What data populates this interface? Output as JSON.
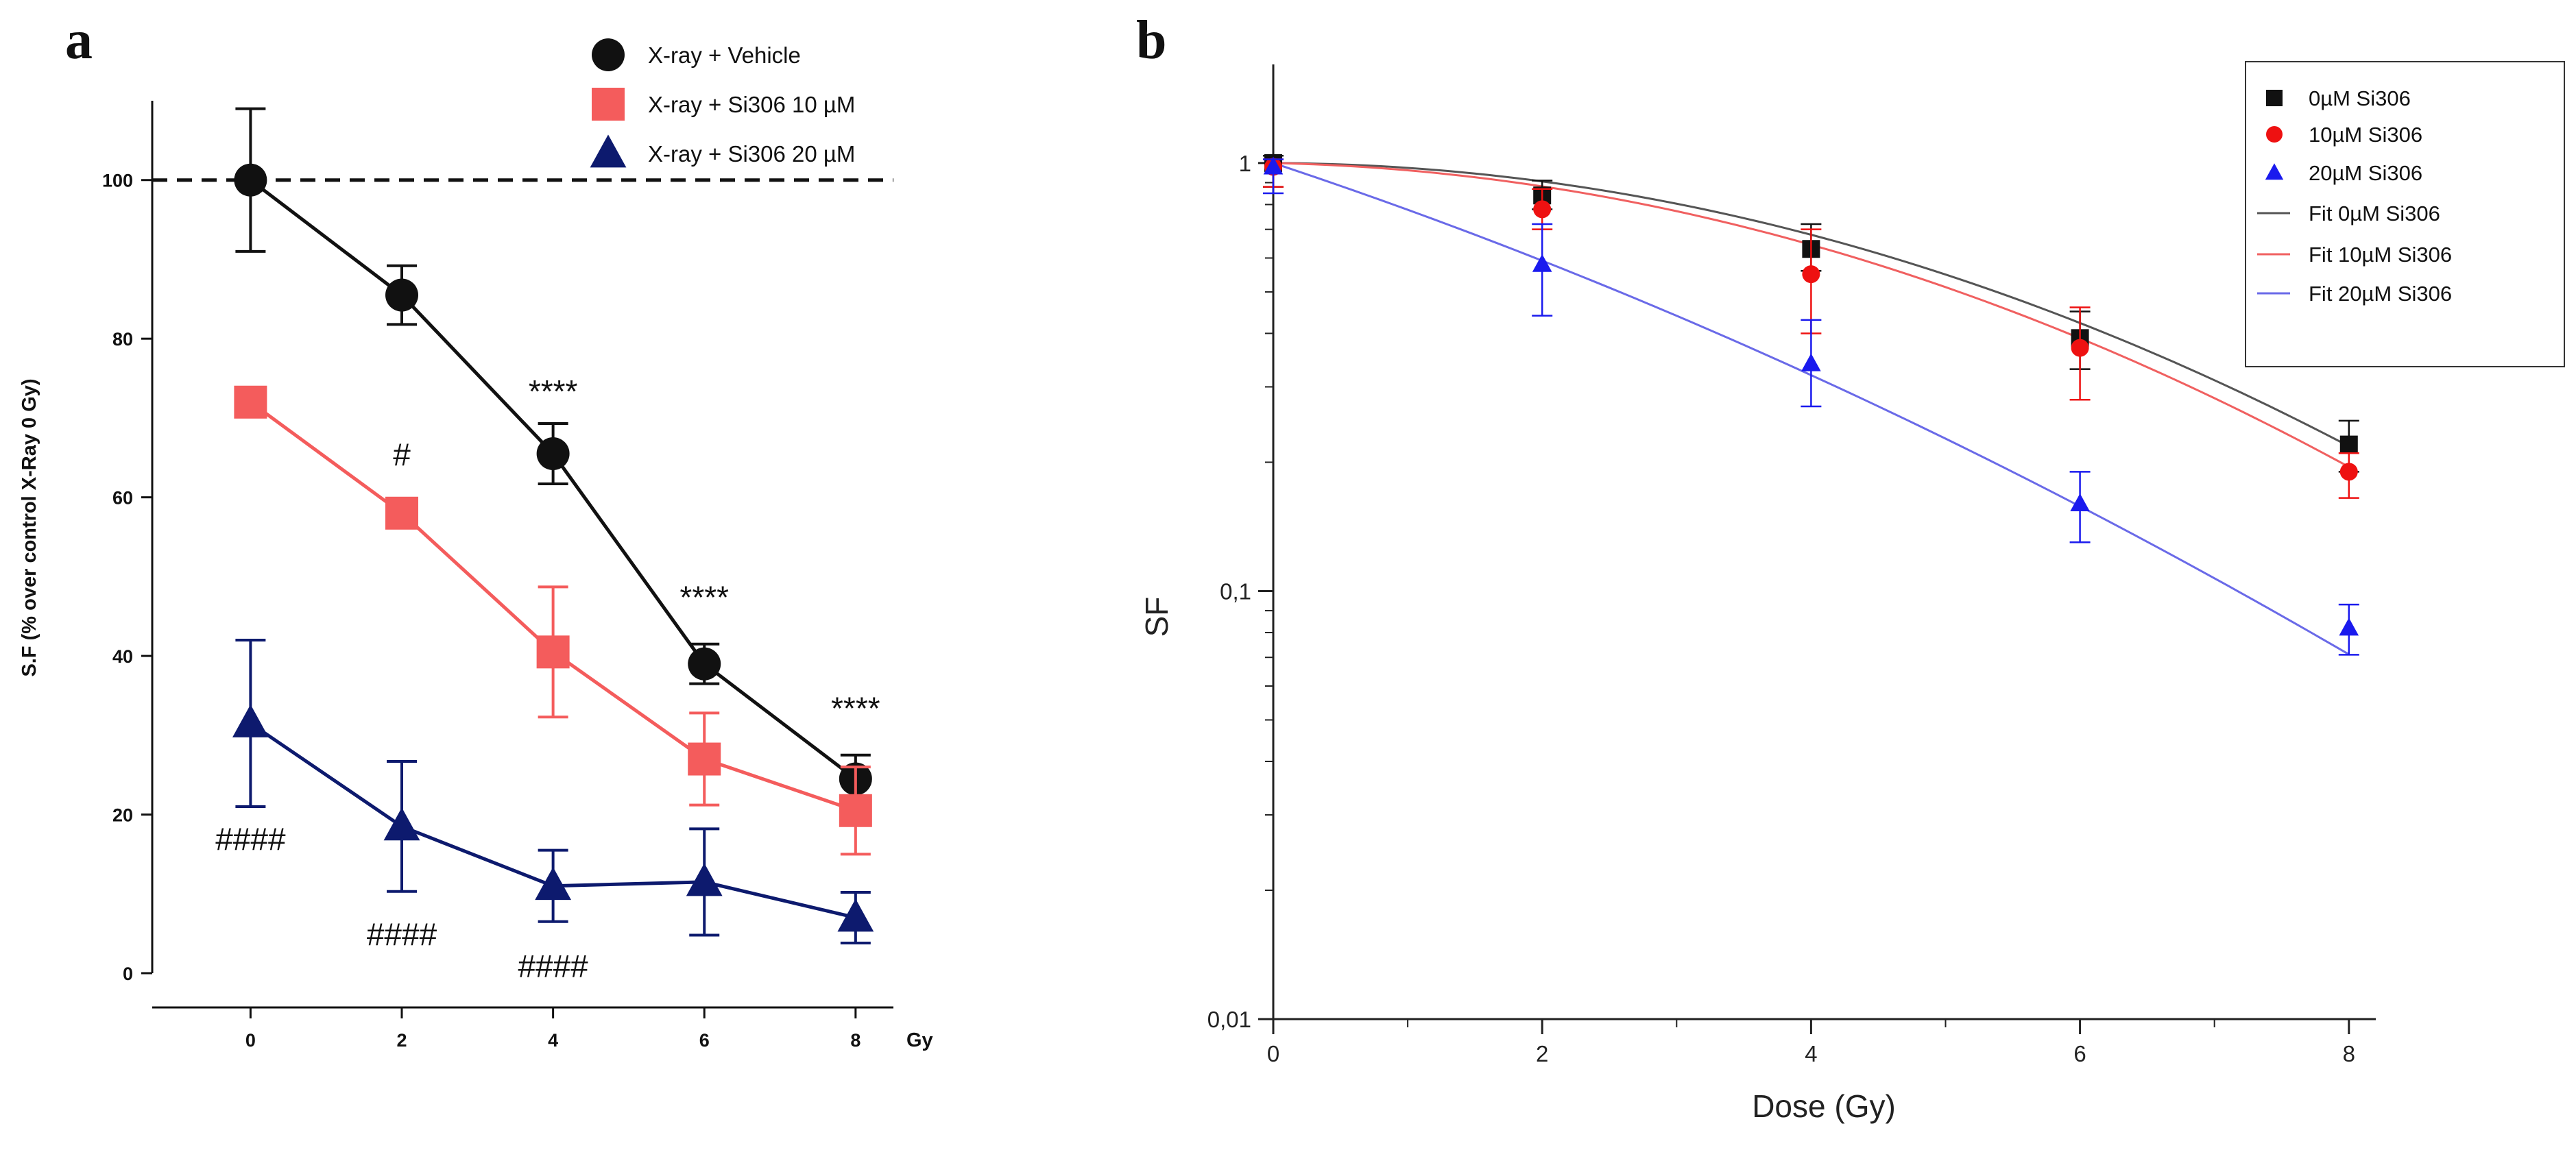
{
  "chart_data": [
    {
      "panel": "a",
      "type": "line",
      "title": "",
      "xlabel": "Gy",
      "ylabel": "S.F (% over control X-Ray 0 Gy)",
      "x": [
        0,
        2,
        4,
        6,
        8
      ],
      "x_tick_labels": [
        "0",
        "2",
        "4",
        "6",
        "8"
      ],
      "y_ticks": [
        0,
        20,
        40,
        60,
        80,
        100
      ],
      "xlim": [
        -1.3,
        8.5
      ],
      "ylim": [
        0,
        110
      ],
      "reference_line": 100,
      "series": [
        {
          "name": "X-ray  + Vehicle",
          "color": "#111111",
          "marker": "circle",
          "values": [
            100,
            85.5,
            65.5,
            39,
            24.5
          ],
          "errors": [
            9,
            3.7,
            3.8,
            2.5,
            3
          ]
        },
        {
          "name": "X-ray  + Si306 10 µM",
          "color": "#f45c5c",
          "marker": "square",
          "values": [
            72,
            58,
            40.5,
            27,
            20.5
          ],
          "errors": [
            1.5,
            1.2,
            8.2,
            5.8,
            5.5
          ]
        },
        {
          "name": "X-ray  + Si306 20 µM",
          "color": "#0d1a6e",
          "marker": "triangle",
          "values": [
            31.5,
            18.5,
            11,
            11.5,
            7
          ],
          "errors": [
            10.5,
            8.2,
            4.5,
            6.7,
            3.2
          ]
        }
      ],
      "annotations": [
        {
          "text": "****",
          "x": 4,
          "y": 72
        },
        {
          "text": "****",
          "x": 6,
          "y": 46
        },
        {
          "text": "****",
          "x": 8,
          "y": 32
        },
        {
          "text": "#",
          "x": 2,
          "y": 64
        },
        {
          "text": "####",
          "x": 0,
          "y": 15.5
        },
        {
          "text": "####",
          "x": 2,
          "y": 3.5
        },
        {
          "text": "####",
          "x": 4,
          "y": -0.5
        }
      ]
    },
    {
      "panel": "b",
      "type": "line",
      "title": "",
      "xlabel": "Dose (Gy)",
      "ylabel": "SF",
      "y_scale": "log",
      "x": [
        0,
        2,
        4,
        6,
        8
      ],
      "x_tick_labels": [
        "0",
        "2",
        "4",
        "6",
        "8"
      ],
      "xlim": [
        0,
        8.2
      ],
      "ylim": [
        0.01,
        1.7
      ],
      "y_ticks": [
        1,
        0.1,
        0.01
      ],
      "y_tick_labels": [
        "1",
        "0,1",
        "0,01"
      ],
      "series": [
        {
          "name": "0µM Si306",
          "color": "#111111",
          "marker": "square",
          "values": [
            1.0,
            0.84,
            0.63,
            0.39,
            0.22
          ],
          "err_low": [
            0.12,
            0.06,
            0.07,
            0.06,
            0.03
          ],
          "err_high": [
            0.04,
            0.07,
            0.09,
            0.06,
            0.03
          ]
        },
        {
          "name": "10µM Si306",
          "color": "#ee1111",
          "marker": "circle",
          "values": [
            0.98,
            0.78,
            0.55,
            0.37,
            0.19
          ],
          "err_low": [
            0.1,
            0.08,
            0.15,
            0.09,
            0.025
          ],
          "err_high": [
            0.04,
            0.09,
            0.15,
            0.09,
            0.02
          ]
        },
        {
          "name": "20µM Si306",
          "color": "#1a1aee",
          "marker": "triangle",
          "values": [
            0.98,
            0.58,
            0.34,
            0.16,
            0.082
          ],
          "err_low": [
            0.13,
            0.14,
            0.07,
            0.03,
            0.011
          ],
          "err_high": [
            0.04,
            0.14,
            0.09,
            0.03,
            0.011
          ]
        }
      ],
      "fits": [
        {
          "name": "Fit 0µM Si306",
          "color": "#555555",
          "alpha": 0.0024,
          "beta": 0.0235
        },
        {
          "name": "Fit 10µM Si306",
          "color": "#f06060",
          "alpha": 0.0155,
          "beta": 0.0236
        },
        {
          "name": "Fit 20µM Si306",
          "color": "#6a6ae8",
          "alpha": 0.24,
          "beta": 0.0113
        }
      ]
    }
  ]
}
